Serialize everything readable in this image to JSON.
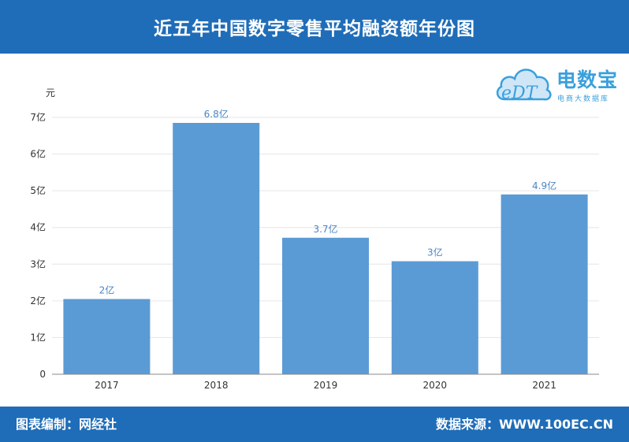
{
  "header": {
    "title": "近五年中国数字零售平均融资额年份图"
  },
  "footer": {
    "editor": "图表编制：网经社",
    "source": "数据来源：WWW.100EC.CN"
  },
  "logo": {
    "name": "电数宝",
    "subtitle": "电商大数据库",
    "mark_text": "eDT",
    "icon": "cloud-logo-icon"
  },
  "colors": {
    "header_bg": "#1f6db8",
    "bar": "#5b9bd5",
    "label": "#4a86c5",
    "logo": "#3aa0dd"
  },
  "chart_data": {
    "type": "bar",
    "title": "",
    "xlabel": "",
    "ylabel": "元",
    "categories": [
      "2017",
      "2018",
      "2019",
      "2020",
      "2021"
    ],
    "values": [
      2.05,
      6.85,
      3.72,
      3.08,
      4.9
    ],
    "data_labels": [
      "2亿",
      "6.8亿",
      "3.7亿",
      "3亿",
      "4.9亿"
    ],
    "y_ticks": [
      "0",
      "1亿",
      "2亿",
      "3亿",
      "4亿",
      "5亿",
      "6亿",
      "7亿"
    ],
    "ylim": [
      0,
      7
    ],
    "grid": true,
    "legend": "none"
  }
}
